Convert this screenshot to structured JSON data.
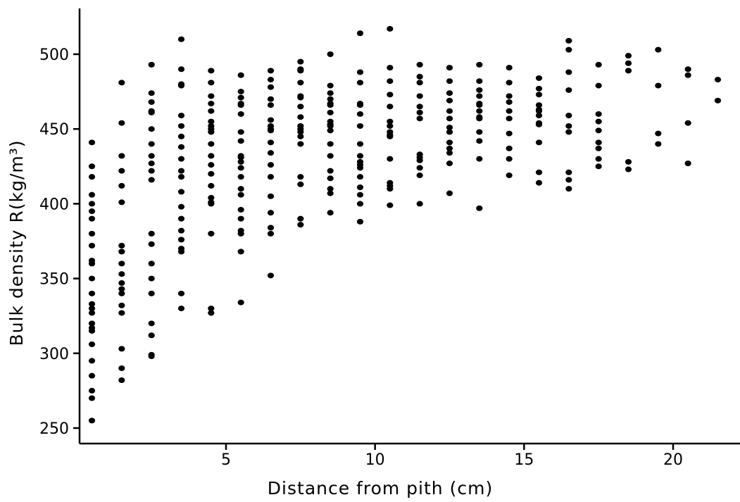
{
  "chart_data": {
    "type": "scatter",
    "title": "",
    "xlabel": "Distance from pith (cm)",
    "ylabel": "Bulk density R(kg/m³)",
    "xlim": [
      0,
      22.5
    ],
    "ylim": [
      240,
      525
    ],
    "x_ticks": [
      5,
      10,
      15,
      20
    ],
    "y_ticks": [
      250,
      300,
      350,
      400,
      450,
      500
    ],
    "grid": false,
    "legend": "none",
    "marker_color": "#000000",
    "series": [
      {
        "points": [
          [
            0.5,
            441
          ],
          [
            0.5,
            425
          ],
          [
            0.5,
            418
          ],
          [
            0.5,
            406
          ],
          [
            0.5,
            400
          ],
          [
            0.5,
            395
          ],
          [
            0.5,
            390
          ],
          [
            0.5,
            380
          ],
          [
            0.5,
            372
          ],
          [
            0.5,
            362
          ],
          [
            0.5,
            360
          ],
          [
            0.5,
            350
          ],
          [
            0.5,
            340
          ],
          [
            0.5,
            333
          ],
          [
            0.5,
            330
          ],
          [
            0.5,
            327
          ],
          [
            0.5,
            320
          ],
          [
            0.5,
            317
          ],
          [
            0.5,
            315
          ],
          [
            0.5,
            306
          ],
          [
            0.5,
            295
          ],
          [
            0.5,
            285
          ],
          [
            0.5,
            275
          ],
          [
            0.5,
            270
          ],
          [
            0.5,
            255
          ],
          [
            1.5,
            481
          ],
          [
            1.5,
            454
          ],
          [
            1.5,
            432
          ],
          [
            1.5,
            422
          ],
          [
            1.5,
            412
          ],
          [
            1.5,
            401
          ],
          [
            1.5,
            372
          ],
          [
            1.5,
            368
          ],
          [
            1.5,
            360
          ],
          [
            1.5,
            353
          ],
          [
            1.5,
            347
          ],
          [
            1.5,
            343
          ],
          [
            1.5,
            340
          ],
          [
            1.5,
            332
          ],
          [
            1.5,
            327
          ],
          [
            1.5,
            303
          ],
          [
            1.5,
            290
          ],
          [
            1.5,
            282
          ],
          [
            2.5,
            493
          ],
          [
            2.5,
            474
          ],
          [
            2.5,
            468
          ],
          [
            2.5,
            462
          ],
          [
            2.5,
            461
          ],
          [
            2.5,
            450
          ],
          [
            2.5,
            440
          ],
          [
            2.5,
            432
          ],
          [
            2.5,
            427
          ],
          [
            2.5,
            422
          ],
          [
            2.5,
            416
          ],
          [
            2.5,
            380
          ],
          [
            2.5,
            373
          ],
          [
            2.5,
            360
          ],
          [
            2.5,
            350
          ],
          [
            2.5,
            340
          ],
          [
            2.5,
            320
          ],
          [
            2.5,
            312
          ],
          [
            2.5,
            299
          ],
          [
            2.5,
            298
          ],
          [
            3.5,
            510
          ],
          [
            3.5,
            490
          ],
          [
            3.5,
            480
          ],
          [
            3.5,
            479
          ],
          [
            3.5,
            459
          ],
          [
            3.5,
            452
          ],
          [
            3.5,
            445
          ],
          [
            3.5,
            438
          ],
          [
            3.5,
            430
          ],
          [
            3.5,
            422
          ],
          [
            3.5,
            418
          ],
          [
            3.5,
            408
          ],
          [
            3.5,
            398
          ],
          [
            3.5,
            390
          ],
          [
            3.5,
            382
          ],
          [
            3.5,
            376
          ],
          [
            3.5,
            370
          ],
          [
            3.5,
            368
          ],
          [
            3.5,
            340
          ],
          [
            3.5,
            330
          ],
          [
            4.5,
            489
          ],
          [
            4.5,
            481
          ],
          [
            4.5,
            472
          ],
          [
            4.5,
            467
          ],
          [
            4.5,
            462
          ],
          [
            4.5,
            455
          ],
          [
            4.5,
            452
          ],
          [
            4.5,
            450
          ],
          [
            4.5,
            448
          ],
          [
            4.5,
            440
          ],
          [
            4.5,
            432
          ],
          [
            4.5,
            426
          ],
          [
            4.5,
            420
          ],
          [
            4.5,
            412
          ],
          [
            4.5,
            404
          ],
          [
            4.5,
            401
          ],
          [
            4.5,
            400
          ],
          [
            4.5,
            380
          ],
          [
            4.5,
            330
          ],
          [
            4.5,
            327
          ],
          [
            5.5,
            486
          ],
          [
            5.5,
            475
          ],
          [
            5.5,
            471
          ],
          [
            5.5,
            467
          ],
          [
            5.5,
            466
          ],
          [
            5.5,
            460
          ],
          [
            5.5,
            448
          ],
          [
            5.5,
            442
          ],
          [
            5.5,
            432
          ],
          [
            5.5,
            431
          ],
          [
            5.5,
            428
          ],
          [
            5.5,
            424
          ],
          [
            5.5,
            418
          ],
          [
            5.5,
            410
          ],
          [
            5.5,
            406
          ],
          [
            5.5,
            396
          ],
          [
            5.5,
            390
          ],
          [
            5.5,
            382
          ],
          [
            5.5,
            380
          ],
          [
            5.5,
            368
          ],
          [
            5.5,
            334
          ],
          [
            6.5,
            489
          ],
          [
            6.5,
            483
          ],
          [
            6.5,
            478
          ],
          [
            6.5,
            470
          ],
          [
            6.5,
            466
          ],
          [
            6.5,
            456
          ],
          [
            6.5,
            452
          ],
          [
            6.5,
            450
          ],
          [
            6.5,
            449
          ],
          [
            6.5,
            441
          ],
          [
            6.5,
            434
          ],
          [
            6.5,
            426
          ],
          [
            6.5,
            418
          ],
          [
            6.5,
            405
          ],
          [
            6.5,
            394
          ],
          [
            6.5,
            384
          ],
          [
            6.5,
            380
          ],
          [
            6.5,
            352
          ],
          [
            7.5,
            495
          ],
          [
            7.5,
            490
          ],
          [
            7.5,
            489
          ],
          [
            7.5,
            481
          ],
          [
            7.5,
            472
          ],
          [
            7.5,
            471
          ],
          [
            7.5,
            465
          ],
          [
            7.5,
            458
          ],
          [
            7.5,
            452
          ],
          [
            7.5,
            450
          ],
          [
            7.5,
            448
          ],
          [
            7.5,
            445
          ],
          [
            7.5,
            440
          ],
          [
            7.5,
            418
          ],
          [
            7.5,
            413
          ],
          [
            7.5,
            390
          ],
          [
            7.5,
            386
          ],
          [
            8.5,
            500
          ],
          [
            8.5,
            479
          ],
          [
            8.5,
            474
          ],
          [
            8.5,
            470
          ],
          [
            8.5,
            467
          ],
          [
            8.5,
            466
          ],
          [
            8.5,
            461
          ],
          [
            8.5,
            455
          ],
          [
            8.5,
            453
          ],
          [
            8.5,
            452
          ],
          [
            8.5,
            449
          ],
          [
            8.5,
            440
          ],
          [
            8.5,
            432
          ],
          [
            8.5,
            422
          ],
          [
            8.5,
            417
          ],
          [
            8.5,
            410
          ],
          [
            8.5,
            407
          ],
          [
            8.5,
            394
          ],
          [
            9.5,
            514
          ],
          [
            9.5,
            488
          ],
          [
            9.5,
            481
          ],
          [
            9.5,
            467
          ],
          [
            9.5,
            466
          ],
          [
            9.5,
            460
          ],
          [
            9.5,
            452
          ],
          [
            9.5,
            440
          ],
          [
            9.5,
            432
          ],
          [
            9.5,
            428
          ],
          [
            9.5,
            426
          ],
          [
            9.5,
            424
          ],
          [
            9.5,
            418
          ],
          [
            9.5,
            411
          ],
          [
            9.5,
            406
          ],
          [
            9.5,
            400
          ],
          [
            9.5,
            388
          ],
          [
            10.5,
            517
          ],
          [
            10.5,
            491
          ],
          [
            10.5,
            482
          ],
          [
            10.5,
            473
          ],
          [
            10.5,
            465
          ],
          [
            10.5,
            455
          ],
          [
            10.5,
            452
          ],
          [
            10.5,
            448
          ],
          [
            10.5,
            446
          ],
          [
            10.5,
            445
          ],
          [
            10.5,
            430
          ],
          [
            10.5,
            414
          ],
          [
            10.5,
            412
          ],
          [
            10.5,
            410
          ],
          [
            10.5,
            399
          ],
          [
            11.5,
            493
          ],
          [
            11.5,
            485
          ],
          [
            11.5,
            481
          ],
          [
            11.5,
            472
          ],
          [
            11.5,
            465
          ],
          [
            11.5,
            461
          ],
          [
            11.5,
            457
          ],
          [
            11.5,
            433
          ],
          [
            11.5,
            431
          ],
          [
            11.5,
            429
          ],
          [
            11.5,
            424
          ],
          [
            11.5,
            419
          ],
          [
            11.5,
            400
          ],
          [
            12.5,
            491
          ],
          [
            12.5,
            482
          ],
          [
            12.5,
            474
          ],
          [
            12.5,
            469
          ],
          [
            12.5,
            462
          ],
          [
            12.5,
            457
          ],
          [
            12.5,
            451
          ],
          [
            12.5,
            448
          ],
          [
            12.5,
            441
          ],
          [
            12.5,
            437
          ],
          [
            12.5,
            434
          ],
          [
            12.5,
            427
          ],
          [
            12.5,
            407
          ],
          [
            13.5,
            493
          ],
          [
            13.5,
            482
          ],
          [
            13.5,
            476
          ],
          [
            13.5,
            472
          ],
          [
            13.5,
            467
          ],
          [
            13.5,
            466
          ],
          [
            13.5,
            462
          ],
          [
            13.5,
            458
          ],
          [
            13.5,
            457
          ],
          [
            13.5,
            448
          ],
          [
            13.5,
            442
          ],
          [
            13.5,
            430
          ],
          [
            13.5,
            397
          ],
          [
            14.5,
            491
          ],
          [
            14.5,
            481
          ],
          [
            14.5,
            472
          ],
          [
            14.5,
            468
          ],
          [
            14.5,
            462
          ],
          [
            14.5,
            457
          ],
          [
            14.5,
            447
          ],
          [
            14.5,
            437
          ],
          [
            14.5,
            430
          ],
          [
            14.5,
            419
          ],
          [
            15.5,
            484
          ],
          [
            15.5,
            477
          ],
          [
            15.5,
            473
          ],
          [
            15.5,
            466
          ],
          [
            15.5,
            463
          ],
          [
            15.5,
            462
          ],
          [
            15.5,
            459
          ],
          [
            15.5,
            454
          ],
          [
            15.5,
            453
          ],
          [
            15.5,
            441
          ],
          [
            15.5,
            421
          ],
          [
            15.5,
            414
          ],
          [
            16.5,
            509
          ],
          [
            16.5,
            503
          ],
          [
            16.5,
            488
          ],
          [
            16.5,
            476
          ],
          [
            16.5,
            459
          ],
          [
            16.5,
            452
          ],
          [
            16.5,
            448
          ],
          [
            16.5,
            421
          ],
          [
            16.5,
            416
          ],
          [
            16.5,
            410
          ],
          [
            17.5,
            493
          ],
          [
            17.5,
            479
          ],
          [
            17.5,
            460
          ],
          [
            17.5,
            455
          ],
          [
            17.5,
            449
          ],
          [
            17.5,
            441
          ],
          [
            17.5,
            437
          ],
          [
            17.5,
            430
          ],
          [
            17.5,
            425
          ],
          [
            18.5,
            499
          ],
          [
            18.5,
            494
          ],
          [
            18.5,
            489
          ],
          [
            18.5,
            428
          ],
          [
            18.5,
            423
          ],
          [
            19.5,
            503
          ],
          [
            19.5,
            479
          ],
          [
            19.5,
            447
          ],
          [
            19.5,
            440
          ],
          [
            20.5,
            490
          ],
          [
            20.5,
            486
          ],
          [
            20.5,
            454
          ],
          [
            20.5,
            427
          ],
          [
            21.5,
            483
          ],
          [
            21.5,
            469
          ]
        ]
      }
    ]
  }
}
